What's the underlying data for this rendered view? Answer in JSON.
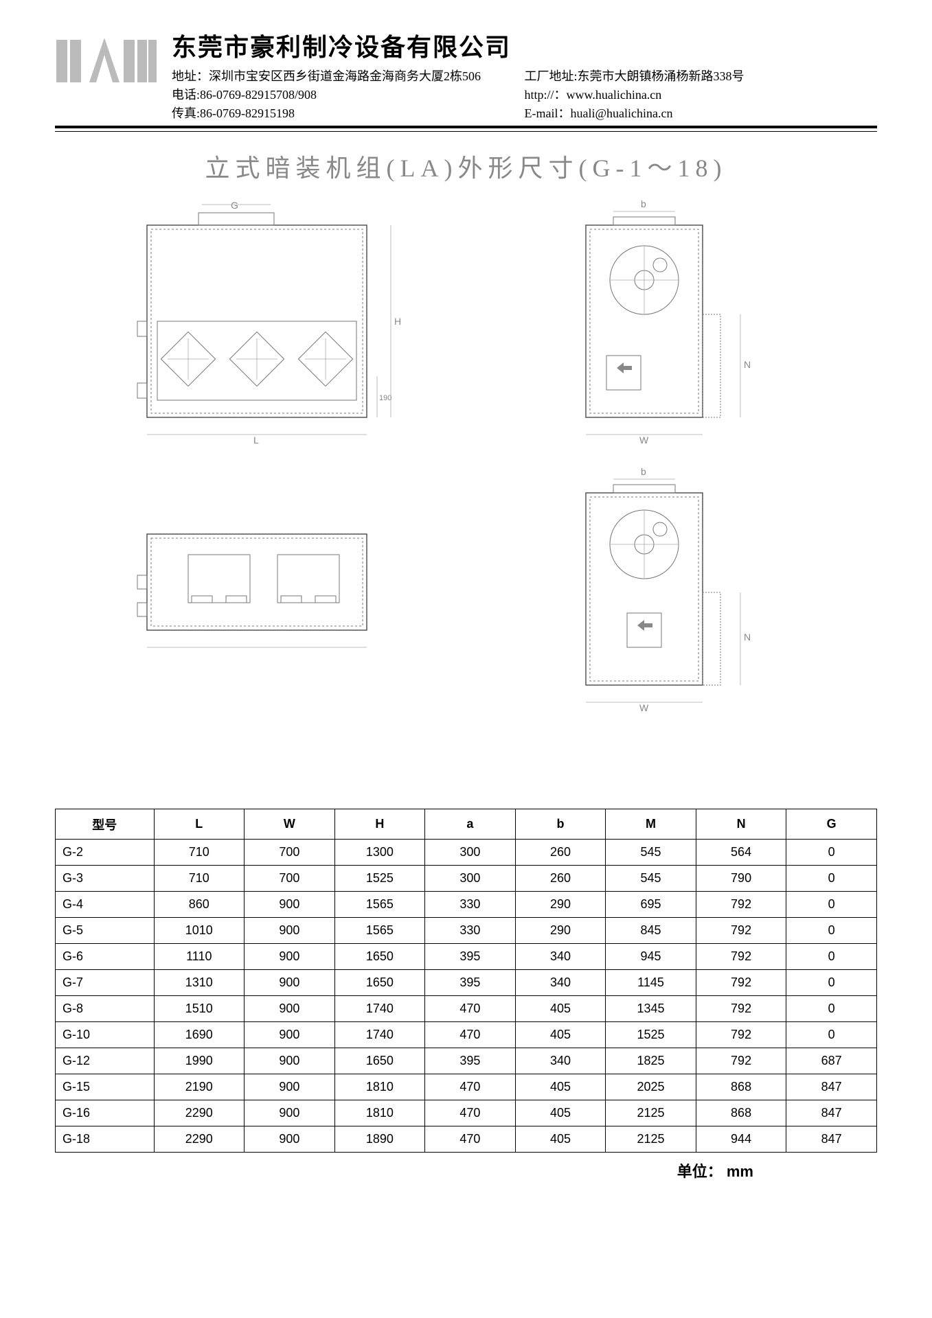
{
  "header": {
    "company": "东莞市豪利制冷设备有限公司",
    "address": "地址：深圳市宝安区西乡街道金海路金海商务大厦2栋506",
    "factory": "工厂地址:东莞市大朗镇杨涌杨新路338号",
    "phone": "电话:86-0769-82915708/908",
    "website": "http://：www.hualichina.cn",
    "fax": "传真:86-0769-82915198",
    "email": "E-mail：huali@hualichina.cn"
  },
  "title": "立式暗装机组(LA)外形尺寸(G-1～18)",
  "drawings": {
    "dim_labels": {
      "G": "G",
      "L": "L",
      "H": "H",
      "W": "W",
      "b": "b",
      "N": "N",
      "val190": "190"
    }
  },
  "table": {
    "columns": [
      "型号",
      "L",
      "W",
      "H",
      "a",
      "b",
      "M",
      "N",
      "G"
    ],
    "rows": [
      [
        "G-2",
        "710",
        "700",
        "1300",
        "300",
        "260",
        "545",
        "564",
        "0"
      ],
      [
        "G-3",
        "710",
        "700",
        "1525",
        "300",
        "260",
        "545",
        "790",
        "0"
      ],
      [
        "G-4",
        "860",
        "900",
        "1565",
        "330",
        "290",
        "695",
        "792",
        "0"
      ],
      [
        "G-5",
        "1010",
        "900",
        "1565",
        "330",
        "290",
        "845",
        "792",
        "0"
      ],
      [
        "G-6",
        "1110",
        "900",
        "1650",
        "395",
        "340",
        "945",
        "792",
        "0"
      ],
      [
        "G-7",
        "1310",
        "900",
        "1650",
        "395",
        "340",
        "1145",
        "792",
        "0"
      ],
      [
        "G-8",
        "1510",
        "900",
        "1740",
        "470",
        "405",
        "1345",
        "792",
        "0"
      ],
      [
        "G-10",
        "1690",
        "900",
        "1740",
        "470",
        "405",
        "1525",
        "792",
        "0"
      ],
      [
        "G-12",
        "1990",
        "900",
        "1650",
        "395",
        "340",
        "1825",
        "792",
        "687"
      ],
      [
        "G-15",
        "2190",
        "900",
        "1810",
        "470",
        "405",
        "2025",
        "868",
        "847"
      ],
      [
        "G-16",
        "2290",
        "900",
        "1810",
        "470",
        "405",
        "2125",
        "868",
        "847"
      ],
      [
        "G-18",
        "2290",
        "900",
        "1890",
        "470",
        "405",
        "2125",
        "944",
        "847"
      ]
    ],
    "col_widths": [
      "12%",
      "11%",
      "11%",
      "11%",
      "11%",
      "11%",
      "11%",
      "11%",
      "11%"
    ]
  },
  "unit": "单位： mm",
  "colors": {
    "text": "#000000",
    "title_gray": "#888888",
    "drawing_stroke": "#777777",
    "background": "#ffffff"
  }
}
